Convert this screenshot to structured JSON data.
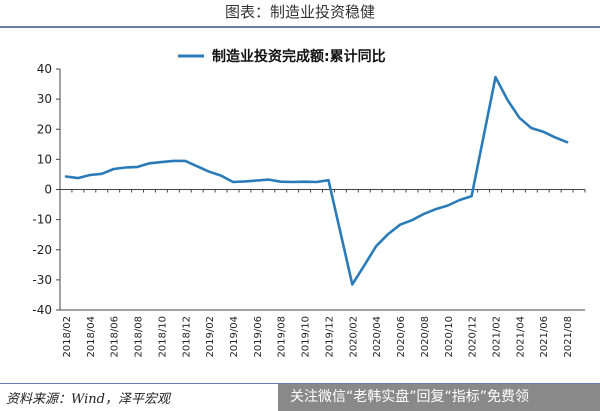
{
  "figure": {
    "title": "图表：制造业投资稳健",
    "source": "资料来源：Wind，泽平宏观",
    "watermark": "关注微信“老韩实盘”回复“指标”免费领"
  },
  "chart_data": {
    "type": "line",
    "title": "",
    "xlabel": "",
    "ylabel": "",
    "ylim": [
      -40,
      40
    ],
    "yticks": [
      40,
      30,
      20,
      10,
      0,
      -10,
      -20,
      -30,
      -40
    ],
    "xtick_labels": [
      "2018/02",
      "2018/04",
      "2018/06",
      "2018/08",
      "2018/10",
      "2018/12",
      "2019/02",
      "2019/04",
      "2019/06",
      "2019/08",
      "2019/10",
      "2019/12",
      "2020/02",
      "2020/04",
      "2020/06",
      "2020/08",
      "2020/10",
      "2020/12",
      "2021/02",
      "2021/04",
      "2021/06",
      "2021/08"
    ],
    "legend_position": "top-center",
    "grid": false,
    "line_color": "#2a7bb8",
    "series": [
      {
        "name": "制造业投资完成额:累计同比",
        "points": [
          [
            "2018/02",
            4.3
          ],
          [
            "2018/03",
            3.8
          ],
          [
            "2018/04",
            4.8
          ],
          [
            "2018/05",
            5.2
          ],
          [
            "2018/06",
            6.8
          ],
          [
            "2018/07",
            7.3
          ],
          [
            "2018/08",
            7.5
          ],
          [
            "2018/09",
            8.7
          ],
          [
            "2018/10",
            9.1
          ],
          [
            "2018/11",
            9.5
          ],
          [
            "2018/12",
            9.5
          ],
          [
            "2019/02",
            5.9
          ],
          [
            "2019/03",
            4.6
          ],
          [
            "2019/04",
            2.5
          ],
          [
            "2019/05",
            2.7
          ],
          [
            "2019/06",
            3.0
          ],
          [
            "2019/07",
            3.3
          ],
          [
            "2019/08",
            2.6
          ],
          [
            "2019/09",
            2.5
          ],
          [
            "2019/10",
            2.6
          ],
          [
            "2019/11",
            2.5
          ],
          [
            "2019/12",
            3.1
          ],
          [
            "2020/02",
            -31.5
          ],
          [
            "2020/03",
            -25.2
          ],
          [
            "2020/04",
            -18.8
          ],
          [
            "2020/05",
            -14.8
          ],
          [
            "2020/06",
            -11.7
          ],
          [
            "2020/07",
            -10.2
          ],
          [
            "2020/08",
            -8.1
          ],
          [
            "2020/09",
            -6.5
          ],
          [
            "2020/10",
            -5.3
          ],
          [
            "2020/11",
            -3.5
          ],
          [
            "2020/12",
            -2.2
          ],
          [
            "2021/02",
            37.3
          ],
          [
            "2021/03",
            29.8
          ],
          [
            "2021/04",
            23.8
          ],
          [
            "2021/05",
            20.4
          ],
          [
            "2021/06",
            19.2
          ],
          [
            "2021/07",
            17.3
          ],
          [
            "2021/08",
            15.7
          ]
        ]
      }
    ]
  }
}
